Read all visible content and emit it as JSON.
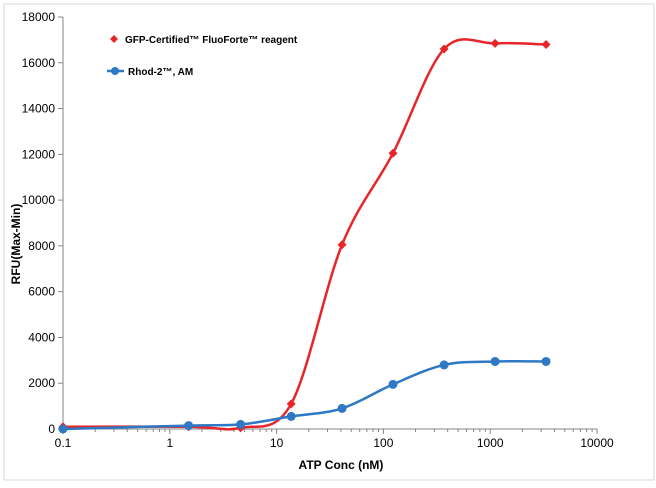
{
  "chart_data": {
    "type": "scatter",
    "title": "",
    "xlabel": "ATP Conc (nM)",
    "ylabel": "RFU(Max-Min)",
    "xscale": "log",
    "xlim": [
      0.1,
      10000
    ],
    "ylim": [
      0,
      18000
    ],
    "xticks": [
      0.1,
      1,
      10,
      100,
      1000,
      10000
    ],
    "xtick_labels": [
      "0.1",
      "1",
      "10",
      "100",
      "1000",
      "10000"
    ],
    "yticks": [
      0,
      2000,
      4000,
      6000,
      8000,
      10000,
      12000,
      14000,
      16000,
      18000
    ],
    "ytick_labels": [
      "0",
      "2000",
      "4000",
      "6000",
      "8000",
      "10000",
      "12000",
      "14000",
      "16000",
      "18000"
    ],
    "grid": false,
    "legend_position": "top-left",
    "series": [
      {
        "name": "GFP-Certified™ FluoForte™ reagent",
        "color": "#e8262a",
        "marker": "diamond",
        "fit_line": "smooth-curve",
        "x": [
          0.1,
          1.5,
          4.6,
          13.7,
          41,
          123,
          370,
          1111,
          3333
        ],
        "y": [
          100,
          100,
          50,
          1100,
          8050,
          12050,
          16600,
          16850,
          16800
        ]
      },
      {
        "name": "Rhod-2™, AM",
        "color": "#2e78c4",
        "marker": "circle",
        "fit_line": "smooth-curve",
        "x": [
          0.1,
          1.5,
          4.6,
          13.7,
          41,
          123,
          370,
          1111,
          3333
        ],
        "y": [
          0,
          150,
          200,
          550,
          900,
          1950,
          2800,
          2950,
          2950
        ]
      }
    ]
  }
}
